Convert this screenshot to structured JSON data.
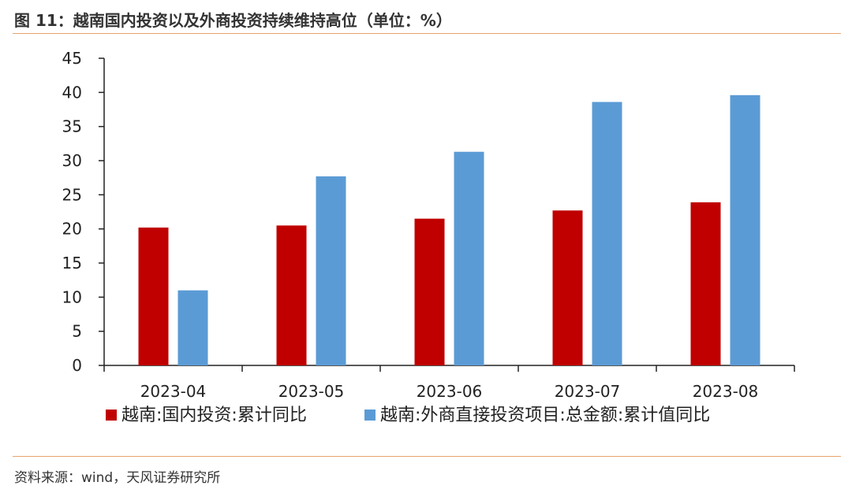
{
  "header": {
    "title": "图 11：越南国内投资以及外商投资持续维持高位（单位：%）"
  },
  "footer": {
    "source": "资料来源：wind，天风证券研究所"
  },
  "colors": {
    "series1": "#c00000",
    "series2": "#5b9bd5",
    "accent_rule": "#e8a36c"
  },
  "chart_data": {
    "type": "bar",
    "title": "图 11：越南国内投资以及外商投资持续维持高位（单位：%）",
    "xlabel": "",
    "ylabel": "",
    "categories": [
      "2023-04",
      "2023-05",
      "2023-06",
      "2023-07",
      "2023-08"
    ],
    "series": [
      {
        "name": "越南:国内投资:累计同比",
        "values": [
          20.2,
          20.5,
          21.5,
          22.7,
          23.9
        ],
        "color": "#c00000"
      },
      {
        "name": "越南:外商直接投资项目:总金额:累计值同比",
        "values": [
          11.0,
          27.7,
          31.3,
          38.6,
          39.6
        ],
        "color": "#5b9bd5"
      }
    ],
    "ylim": [
      0,
      45
    ],
    "yticks": [
      "0",
      "5",
      "10",
      "15",
      "20",
      "25",
      "30",
      "35",
      "40",
      "45"
    ],
    "grid": false,
    "legend": "bottom"
  }
}
